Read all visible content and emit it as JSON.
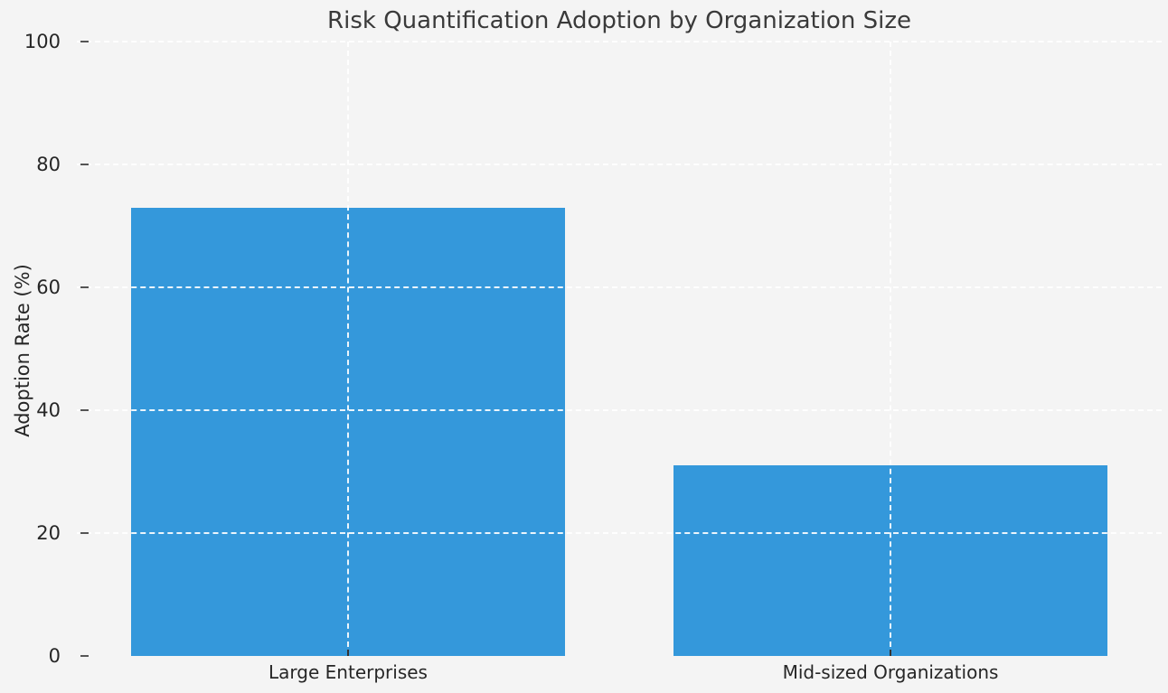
{
  "chart_data": {
    "type": "bar",
    "title": "Risk Quantification Adoption by Organization Size",
    "categories": [
      "Large Enterprises",
      "Mid-sized Organizations"
    ],
    "values": [
      73,
      31
    ],
    "xlabel": "",
    "ylabel": "Adoption Rate (%)",
    "ylim": [
      0,
      100
    ],
    "yticks": [
      0,
      20,
      40,
      60,
      80,
      100
    ],
    "grid": "on",
    "legend": "none",
    "bar_color": "#3498db",
    "background_color": "#f4f4f4",
    "grid_color": "#ffffff",
    "text_color": "#262626",
    "title_color": "#3a3a3a"
  }
}
